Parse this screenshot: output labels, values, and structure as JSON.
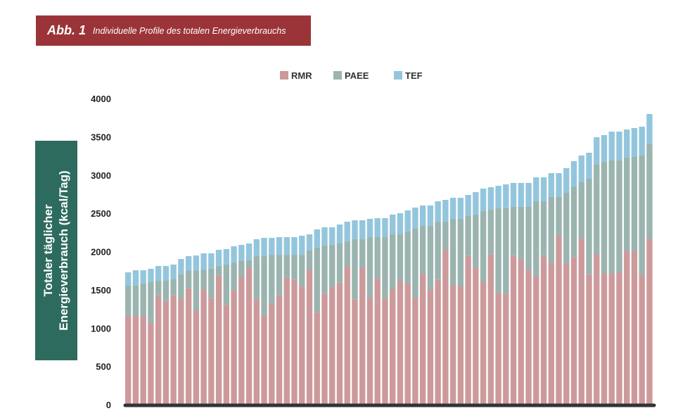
{
  "header": {
    "figure_label": "Abb. 1",
    "title": "Individuelle Profile des totalen Energieverbrauchs"
  },
  "chart_data": {
    "type": "bar",
    "stacked": true,
    "title": "Individuelle Profile des totalen Energieverbrauchs",
    "xlabel": "",
    "ylabel_lines": [
      "Totaler täglicher",
      "Energieverbrauch (kcal/Tag)"
    ],
    "ylim": [
      0,
      4000
    ],
    "yticks": [
      "0",
      "500",
      "1000",
      "1500",
      "2000",
      "2500",
      "3000",
      "3500",
      "4000"
    ],
    "legend_position": "top-center",
    "grid": false,
    "colors": {
      "RMR": "#cd9a9c",
      "PAEE": "#9bb4b0",
      "TEF": "#93c6dd",
      "axis": "#333333",
      "banner": "#9b3438",
      "label_box": "#2e6b5f"
    },
    "series": [
      {
        "name": "RMR",
        "values": [
          1159,
          1159,
          1159,
          1067,
          1428,
          1355,
          1428,
          1379,
          1520,
          1232,
          1499,
          1392,
          1686,
          1300,
          1490,
          1673,
          1784,
          1379,
          1159,
          1318,
          1428,
          1667,
          1630,
          1545,
          1765,
          1208,
          1447,
          1539,
          1594,
          1802,
          1373,
          1784,
          1398,
          1649,
          1392,
          1508,
          1618,
          1582,
          1398,
          1710,
          1499,
          1630,
          2023,
          1563,
          1545,
          1943,
          1784,
          1600,
          1962,
          1465,
          1447,
          1943,
          1894,
          1766,
          1673,
          1943,
          1857,
          2207,
          1839,
          1925,
          2170,
          1704,
          1968,
          1710,
          1710,
          1729,
          2005,
          2005,
          1692,
          2170
        ]
      },
      {
        "name": "PAEE",
        "values": [
          395,
          395,
          423,
          533,
          190,
          263,
          209,
          322,
          227,
          515,
          266,
          383,
          126,
          530,
          367,
          203,
          101,
          561,
          781,
          640,
          530,
          291,
          328,
          413,
          249,
          843,
          631,
          548,
          512,
          331,
          788,
          377,
          790,
          539,
          796,
          717,
          607,
          680,
          901,
          626,
          837,
          761,
          368,
          865,
          883,
          521,
          699,
          929,
          585,
          1101,
          1119,
          641,
          690,
          818,
          984,
          714,
          856,
          506,
          929,
          926,
          736,
          1248,
          1168,
          1462,
          1481,
          1462,
          1223,
          1232,
          1563,
          1232
        ]
      },
      {
        "name": "TEF",
        "values": [
          175,
          202,
          174,
          175,
          194,
          194,
          193,
          202,
          193,
          202,
          212,
          202,
          211,
          202,
          212,
          211,
          221,
          221,
          239,
          221,
          230,
          230,
          230,
          249,
          211,
          239,
          239,
          230,
          248,
          258,
          248,
          248,
          240,
          249,
          249,
          258,
          276,
          276,
          276,
          266,
          266,
          266,
          285,
          275,
          275,
          276,
          294,
          294,
          294,
          294,
          312,
          313,
          313,
          313,
          313,
          313,
          312,
          312,
          322,
          331,
          349,
          340,
          358,
          350,
          377,
          377,
          367,
          377,
          377,
          396
        ]
      }
    ]
  }
}
